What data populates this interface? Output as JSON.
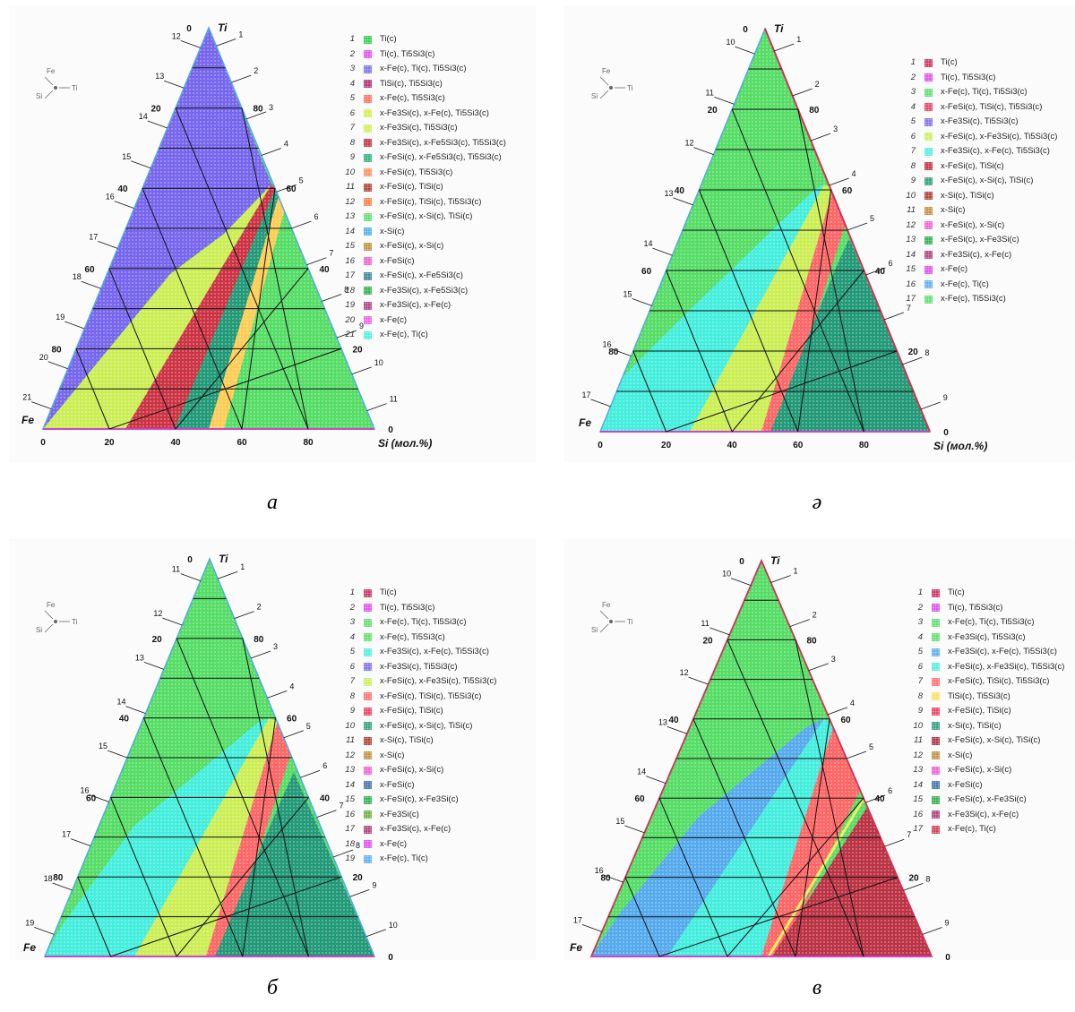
{
  "axis_unit": "Si (мол.%)",
  "apex_labels": {
    "top": "Ti",
    "left": "Fe"
  },
  "left_ticks": [
    "0",
    "20",
    "40",
    "60",
    "80"
  ],
  "right_ticks": [
    "80",
    "60",
    "40",
    "20",
    "0"
  ],
  "bottom_ticks": [
    "0",
    "20",
    "40",
    "60",
    "80"
  ],
  "orientation": {
    "fe": "Fe",
    "si": "Si",
    "ti": "Ti"
  },
  "colors": {
    "green": "#55dd66",
    "blue": "#7766ee",
    "yellow": "#ccee55",
    "crimson": "#cc3344",
    "orange": "#ffcc55",
    "teal": "#229977",
    "cyan": "#44eedd",
    "salmon": "#ff6666",
    "sky": "#55aaee",
    "darkred": "#bb3344",
    "lime": "#ccee44"
  },
  "panels": [
    {
      "caption": "а",
      "legend": [
        {
          "n": "1",
          "label": "Ti(c)",
          "color": "#22cc44"
        },
        {
          "n": "2",
          "label": "Ti(c), Ti5Si3(c)",
          "color": "#dd44ee"
        },
        {
          "n": "3",
          "label": "x-Fe(c), Ti(c), Ti5Si3(c)",
          "color": "#7766ee"
        },
        {
          "n": "4",
          "label": "TiSi(c), Ti5Si3(c)",
          "color": "#aa2266"
        },
        {
          "n": "5",
          "label": "x-Fe(c), Ti5Si3(c)",
          "color": "#ff6655"
        },
        {
          "n": "6",
          "label": "x-Fe3Si(c), x-Fe(c), Ti5Si3(c)",
          "color": "#ccee44"
        },
        {
          "n": "7",
          "label": "x-Fe3Si(c), Ti5Si3(c)",
          "color": "#ccee44"
        },
        {
          "n": "8",
          "label": "x-Fe3Si(c), x-Fe5Si3(c), Ti5Si3(c)",
          "color": "#bb2233"
        },
        {
          "n": "9",
          "label": "x-FeSi(c), x-Fe5Si3(c), Ti5Si3(c)",
          "color": "#22aa77"
        },
        {
          "n": "10",
          "label": "x-FeSi(c), Ti5Si3(c)",
          "color": "#ff8855"
        },
        {
          "n": "11",
          "label": "x-FeSi(c), TiSi(c)",
          "color": "#aa3322"
        },
        {
          "n": "12",
          "label": "x-FeSi(c), TiSi(c), Ti5Si3(c)",
          "color": "#ff7733"
        },
        {
          "n": "13",
          "label": "x-FeSi(c), x-Si(c), TiSi(c)",
          "color": "#55dd66"
        },
        {
          "n": "14",
          "label": "x-Si(c)",
          "color": "#44aaee"
        },
        {
          "n": "15",
          "label": "x-FeSi(c), x-Si(c)",
          "color": "#bb8833"
        },
        {
          "n": "16",
          "label": "x-FeSi(c)",
          "color": "#ee55cc"
        },
        {
          "n": "17",
          "label": "x-FeSi(c), x-Fe5Si3(c)",
          "color": "#337799"
        },
        {
          "n": "18",
          "label": "x-Fe3Si(c), x-Fe5Si3(c)",
          "color": "#22aa44"
        },
        {
          "n": "19",
          "label": "x-Fe3Si(c), x-Fe(c)",
          "color": "#aa3377"
        },
        {
          "n": "20",
          "label": "x-Fe(c)",
          "color": "#ee55ee"
        },
        {
          "n": "21",
          "label": "x-Fe(c), Ti(c)",
          "color": "#44eedd"
        }
      ],
      "region_labels": [
        "1",
        "2",
        "3",
        "4",
        "5",
        "6",
        "7",
        "8",
        "9",
        "10",
        "11",
        "12",
        "13",
        "14",
        "15",
        "16",
        "17",
        "18",
        "19",
        "20",
        "21"
      ]
    },
    {
      "caption": "ә",
      "legend": [
        {
          "n": "1",
          "label": "Ti(c)",
          "color": "#cc2255"
        },
        {
          "n": "2",
          "label": "Ti(c), Ti5Si3(c)",
          "color": "#dd44ee"
        },
        {
          "n": "3",
          "label": "x-Fe(c), Ti(c), Ti5Si3(c)",
          "color": "#55dd66"
        },
        {
          "n": "4",
          "label": "x-FeSi(c), TiSi(c), Ti5Si3(c)",
          "color": "#ee3355"
        },
        {
          "n": "5",
          "label": "x-Fe3Si(c), Ti5Si3(c)",
          "color": "#7766ee"
        },
        {
          "n": "6",
          "label": "x-FeSi(c), x-Fe3Si(c), Ti5Si3(c)",
          "color": "#ccee55"
        },
        {
          "n": "7",
          "label": "x-Fe3Si(c), x-Fe(c), Ti5Si3(c)",
          "color": "#44eedd"
        },
        {
          "n": "8",
          "label": "x-FeSi(c), TiSi(c)",
          "color": "#bb2233"
        },
        {
          "n": "9",
          "label": "x-FeSi(c), x-Si(c), TiSi(c)",
          "color": "#229977"
        },
        {
          "n": "10",
          "label": "x-Si(c), TiSi(c)",
          "color": "#aa3322"
        },
        {
          "n": "11",
          "label": "x-Si(c)",
          "color": "#bb8833"
        },
        {
          "n": "12",
          "label": "x-FeSi(c), x-Si(c)",
          "color": "#ee55cc"
        },
        {
          "n": "13",
          "label": "x-FeSi(c), x-Fe3Si(c)",
          "color": "#22aa44"
        },
        {
          "n": "14",
          "label": "x-Fe3Si(c), x-Fe(c)",
          "color": "#aa3377"
        },
        {
          "n": "15",
          "label": "x-Fe(c)",
          "color": "#dd44ee"
        },
        {
          "n": "16",
          "label": "x-Fe(c), Ti(c)",
          "color": "#55aaee"
        },
        {
          "n": "17",
          "label": "x-Fe(c), Ti5Si3(c)",
          "color": "#55dd66"
        }
      ],
      "region_labels": [
        "1",
        "2",
        "3",
        "4",
        "5",
        "6",
        "7",
        "8",
        "9",
        "10",
        "11",
        "12",
        "13",
        "14",
        "15",
        "16",
        "17"
      ]
    },
    {
      "caption": "б",
      "legend": [
        {
          "n": "1",
          "label": "Ti(c)",
          "color": "#cc2255"
        },
        {
          "n": "2",
          "label": "Ti(c), Ti5Si3(c)",
          "color": "#dd44ee"
        },
        {
          "n": "3",
          "label": "x-Fe(c), Ti(c), Ti5Si3(c)",
          "color": "#55dd66"
        },
        {
          "n": "4",
          "label": "x-Fe(c), Ti5Si3(c)",
          "color": "#55dd66"
        },
        {
          "n": "5",
          "label": "x-Fe3Si(c), x-Fe(c), Ti5Si3(c)",
          "color": "#44eedd"
        },
        {
          "n": "6",
          "label": "x-Fe3Si(c), Ti5Si3(c)",
          "color": "#7766ee"
        },
        {
          "n": "7",
          "label": "x-FeSi(c), x-Fe3Si(c), Ti5Si3(c)",
          "color": "#ccee55"
        },
        {
          "n": "8",
          "label": "x-FeSi(c), TiSi(c), Ti5Si3(c)",
          "color": "#ff6666"
        },
        {
          "n": "9",
          "label": "x-FeSi(c), TiSi(c)",
          "color": "#ee3355"
        },
        {
          "n": "10",
          "label": "x-FeSi(c), x-Si(c), TiSi(c)",
          "color": "#229977"
        },
        {
          "n": "11",
          "label": "x-Si(c), TiSi(c)",
          "color": "#aa3322"
        },
        {
          "n": "12",
          "label": "x-Si(c)",
          "color": "#bb8833"
        },
        {
          "n": "13",
          "label": "x-FeSi(c), x-Si(c)",
          "color": "#ee55cc"
        },
        {
          "n": "14",
          "label": "x-FeSi(c)",
          "color": "#3366aa"
        },
        {
          "n": "15",
          "label": "x-FeSi(c), x-Fe3Si(c)",
          "color": "#22aa44"
        },
        {
          "n": "16",
          "label": "x-Fe3Si(c)",
          "color": "#66aa33"
        },
        {
          "n": "17",
          "label": "x-Fe3Si(c), x-Fe(c)",
          "color": "#aa3377"
        },
        {
          "n": "18",
          "label": "x-Fe(c)",
          "color": "#dd44ee"
        },
        {
          "n": "19",
          "label": "x-Fe(c), Ti(c)",
          "color": "#55aaee"
        }
      ],
      "region_labels": [
        "1",
        "2",
        "3",
        "4",
        "5",
        "6",
        "7",
        "8",
        "9",
        "10",
        "11",
        "12",
        "13",
        "14",
        "15",
        "16",
        "17",
        "18",
        "19"
      ]
    },
    {
      "caption": "в",
      "legend": [
        {
          "n": "1",
          "label": "Ti(c)",
          "color": "#cc2255"
        },
        {
          "n": "2",
          "label": "Ti(c), Ti5Si3(c)",
          "color": "#dd44ee"
        },
        {
          "n": "3",
          "label": "x-Fe(c), Ti(c), Ti5Si3(c)",
          "color": "#55dd66"
        },
        {
          "n": "4",
          "label": "x-Fe3Si(c), Ti5Si3(c)",
          "color": "#55dd66"
        },
        {
          "n": "5",
          "label": "x-Fe3Si(c), x-Fe(c), Ti5Si3(c)",
          "color": "#55aaee"
        },
        {
          "n": "6",
          "label": "x-FeSi(c), x-Fe3Si(c), Ti5Si3(c)",
          "color": "#44eedd"
        },
        {
          "n": "7",
          "label": "x-FeSi(c), TiSi(c), Ti5Si3(c)",
          "color": "#ff6666"
        },
        {
          "n": "8",
          "label": "TiSi(c), Ti5Si3(c)",
          "color": "#ffdd55"
        },
        {
          "n": "9",
          "label": "x-FeSi(c), TiSi(c)",
          "color": "#ee3355"
        },
        {
          "n": "10",
          "label": "x-Si(c), TiSi(c)",
          "color": "#229977"
        },
        {
          "n": "11",
          "label": "x-FeSi(c), x-Si(c), TiSi(c)",
          "color": "#aa2233"
        },
        {
          "n": "12",
          "label": "x-Si(c)",
          "color": "#bb8833"
        },
        {
          "n": "13",
          "label": "x-FeSi(c), x-Si(c)",
          "color": "#ee55cc"
        },
        {
          "n": "14",
          "label": "x-FeSi(c)",
          "color": "#3366aa"
        },
        {
          "n": "15",
          "label": "x-FeSi(c), x-Fe3Si(c)",
          "color": "#22aa44"
        },
        {
          "n": "16",
          "label": "x-Fe3Si(c), x-Fe(c)",
          "color": "#aa3377"
        },
        {
          "n": "17",
          "label": "x-Fe(c), Ti(c)",
          "color": "#cc3344"
        }
      ],
      "region_labels": [
        "1",
        "2",
        "3",
        "4",
        "5",
        "6",
        "7",
        "8",
        "9",
        "10",
        "11",
        "12",
        "13",
        "14",
        "15",
        "16",
        "17"
      ]
    }
  ]
}
